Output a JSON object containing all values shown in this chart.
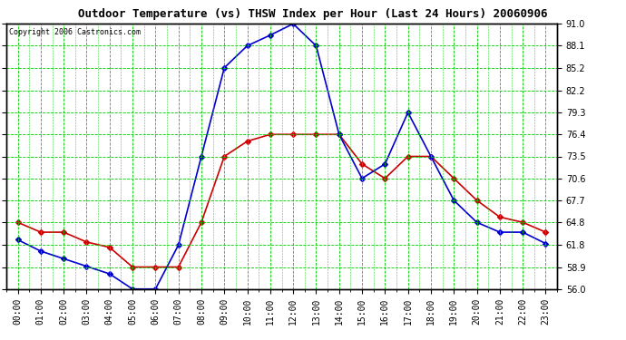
{
  "title": "Outdoor Temperature (vs) THSW Index per Hour (Last 24 Hours) 20060906",
  "copyright": "Copyright 2006 Castronics.com",
  "hours": [
    "00:00",
    "01:00",
    "02:00",
    "03:00",
    "04:00",
    "05:00",
    "06:00",
    "07:00",
    "08:00",
    "09:00",
    "10:00",
    "11:00",
    "12:00",
    "13:00",
    "14:00",
    "15:00",
    "16:00",
    "17:00",
    "18:00",
    "19:00",
    "20:00",
    "21:00",
    "22:00",
    "23:00"
  ],
  "temp": [
    64.8,
    63.5,
    63.5,
    62.2,
    61.5,
    58.9,
    58.9,
    58.9,
    64.8,
    73.5,
    75.5,
    76.4,
    76.4,
    76.4,
    76.4,
    72.5,
    70.6,
    73.5,
    73.5,
    70.6,
    67.7,
    65.5,
    64.8,
    63.5
  ],
  "thsw": [
    62.5,
    61.0,
    60.0,
    59.0,
    58.0,
    56.0,
    56.0,
    61.8,
    73.5,
    85.2,
    88.1,
    89.5,
    91.0,
    88.1,
    76.4,
    70.6,
    72.5,
    79.3,
    73.5,
    67.7,
    64.8,
    63.5,
    63.5,
    62.0
  ],
  "temp_color": "#cc0000",
  "thsw_color": "#0000cc",
  "grid_color": "#00cc00",
  "bg_color": "#ffffff",
  "ylim_min": 56.0,
  "ylim_max": 91.0,
  "yticks": [
    56.0,
    58.9,
    61.8,
    64.8,
    67.7,
    70.6,
    73.5,
    76.4,
    79.3,
    82.2,
    85.2,
    88.1,
    91.0
  ],
  "title_fontsize": 9,
  "copyright_fontsize": 6,
  "tick_fontsize": 7,
  "marker": "D",
  "marker_size": 3,
  "line_width": 1.2
}
